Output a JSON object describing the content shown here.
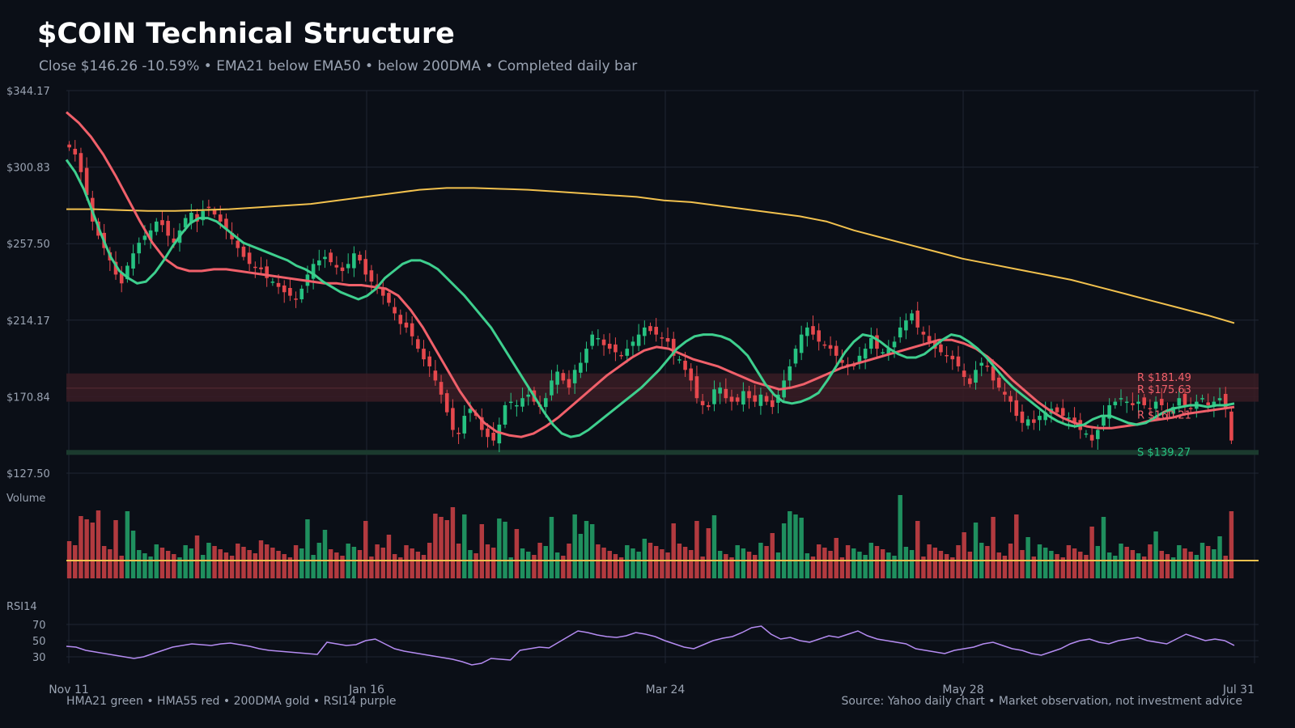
{
  "header": {
    "title": "$COIN Technical Structure",
    "subtitle": "Close $146.26  -10.59%  •  EMA21 below EMA50 • below 200DMA  •  Completed daily bar"
  },
  "footer": {
    "legend": "HMA21 green • HMA55 red • 200DMA gold  •  RSI14 purple",
    "source": "Source: Yahoo daily chart • Market observation, not investment advice"
  },
  "colors": {
    "background": "#0b0f17",
    "up": "#26c281",
    "down": "#e5484d",
    "hma21": "#3ecf8e",
    "hma55": "#f0606a",
    "dma200": "#f2c14e",
    "rsi": "#b58cf2",
    "resistance_band": "#3a1c24",
    "support_band": "#1b3a2e",
    "grid": "#1f2633"
  },
  "chart_data": {
    "type": "candlestick",
    "price_axis": {
      "ticks": [
        "$344.17",
        "$300.83",
        "$257.50",
        "$214.17",
        "$170.84",
        "$127.50"
      ],
      "tick_values": [
        344.17,
        300.83,
        257.5,
        214.17,
        170.84,
        127.5
      ],
      "ylim": [
        127.5,
        344.17
      ]
    },
    "date_ticks": [
      "Nov 11",
      "Jan 16",
      "Mar 24",
      "May 28",
      "Jul 31"
    ],
    "panel_labels": {
      "volume": "Volume",
      "rsi": "RSI14"
    },
    "rsi_axis": {
      "ticks": [
        "70",
        "50",
        "30"
      ],
      "tick_values": [
        70,
        50,
        30
      ]
    },
    "levels": [
      {
        "label": "R $181.49",
        "value": 181.49,
        "kind": "resistance"
      },
      {
        "label": "R $175.63",
        "value": 175.63,
        "kind": "resistance"
      },
      {
        "label": "R $160.21",
        "value": 160.21,
        "kind": "resistance"
      },
      {
        "label": "S $139.27",
        "value": 139.27,
        "kind": "support"
      }
    ],
    "close": [
      312,
      308,
      298,
      285,
      270,
      262,
      255,
      248,
      240,
      235,
      245,
      252,
      258,
      262,
      265,
      270,
      268,
      262,
      258,
      265,
      272,
      275,
      270,
      276,
      278,
      274,
      270,
      266,
      260,
      255,
      250,
      246,
      244,
      243,
      238,
      236,
      233,
      230,
      228,
      226,
      232,
      240,
      246,
      248,
      250,
      247,
      244,
      242,
      246,
      252,
      248,
      240,
      236,
      232,
      228,
      224,
      218,
      212,
      210,
      205,
      198,
      192,
      188,
      180,
      172,
      162,
      152,
      150,
      160,
      164,
      160,
      152,
      148,
      146,
      155,
      166,
      168,
      166,
      170,
      172,
      168,
      165,
      170,
      180,
      185,
      180,
      176,
      186,
      190,
      198,
      206,
      204,
      200,
      198,
      196,
      194,
      198,
      202,
      206,
      210,
      208,
      206,
      204,
      202,
      194,
      192,
      186,
      180,
      170,
      166,
      165,
      175,
      176,
      170,
      168,
      168,
      174,
      170,
      168,
      172,
      168,
      165,
      172,
      180,
      188,
      198,
      206,
      210,
      206,
      202,
      200,
      198,
      194,
      190,
      188,
      188,
      194,
      198,
      204,
      198,
      196,
      198,
      202,
      210,
      214,
      218,
      210,
      206,
      202,
      198,
      196,
      194,
      192,
      188,
      182,
      178,
      186,
      190,
      188,
      180,
      176,
      172,
      168,
      160,
      156,
      158,
      156,
      160,
      162,
      164,
      162,
      160,
      159,
      156,
      152,
      150,
      146,
      152,
      160,
      166,
      168,
      170,
      168,
      166,
      168,
      166,
      164,
      168,
      166,
      162,
      165,
      170,
      166,
      164,
      168,
      170,
      166,
      168,
      170,
      164,
      146
    ],
    "hma21": [
      305,
      298,
      288,
      275,
      262,
      250,
      242,
      238,
      235,
      236,
      241,
      248,
      256,
      263,
      269,
      272,
      272,
      270,
      266,
      262,
      258,
      256,
      254,
      252,
      250,
      248,
      245,
      243,
      240,
      236,
      233,
      230,
      228,
      226,
      228,
      232,
      238,
      242,
      246,
      248,
      248,
      246,
      243,
      238,
      233,
      228,
      222,
      216,
      210,
      202,
      194,
      186,
      178,
      170,
      162,
      155,
      150,
      148,
      149,
      152,
      156,
      160,
      164,
      168,
      172,
      176,
      181,
      186,
      192,
      198,
      202,
      205,
      206,
      206,
      205,
      203,
      199,
      194,
      186,
      178,
      172,
      168,
      167,
      168,
      170,
      173,
      180,
      188,
      196,
      202,
      206,
      205,
      202,
      198,
      195,
      193,
      193,
      195,
      199,
      203,
      206,
      205,
      202,
      198,
      193,
      187,
      181,
      176,
      172,
      168,
      164,
      160,
      157,
      155,
      154,
      155,
      158,
      160,
      160,
      158,
      156,
      155,
      156,
      159,
      162,
      164,
      165,
      166,
      166,
      165,
      166,
      166,
      167
    ],
    "hma55": [
      332,
      326,
      318,
      308,
      296,
      283,
      270,
      258,
      249,
      244,
      242,
      242,
      243,
      243,
      242,
      241,
      240,
      239,
      238,
      237,
      236,
      235,
      235,
      234,
      234,
      233,
      232,
      228,
      220,
      210,
      198,
      186,
      174,
      164,
      156,
      151,
      149,
      148,
      150,
      154,
      159,
      165,
      171,
      177,
      183,
      188,
      193,
      197,
      199,
      198,
      195,
      192,
      190,
      188,
      185,
      182,
      179,
      177,
      175,
      176,
      178,
      181,
      184,
      187,
      189,
      191,
      193,
      195,
      197,
      199,
      201,
      203,
      203,
      201,
      198,
      193,
      187,
      180,
      174,
      168,
      163,
      159,
      156,
      154,
      153,
      153,
      154,
      155,
      157,
      158,
      159,
      161,
      162,
      163,
      164,
      165
    ],
    "dma200": [
      277,
      277,
      276.5,
      276,
      276,
      276.5,
      277,
      278,
      279,
      280,
      282,
      284,
      286,
      288,
      289,
      289,
      288.5,
      288,
      287,
      286,
      285,
      284,
      282,
      281,
      279,
      277,
      275,
      273,
      270,
      265,
      261,
      257,
      253,
      249,
      246,
      243,
      240,
      237,
      233,
      229,
      225,
      221,
      217,
      212.5
    ],
    "volume_avg_note": "",
    "rsi14": [
      43,
      42,
      38,
      36,
      34,
      32,
      30,
      28,
      30,
      34,
      38,
      42,
      44,
      46,
      45,
      44,
      46,
      47,
      45,
      43,
      40,
      38,
      37,
      36,
      35,
      34,
      33,
      48,
      46,
      44,
      45,
      50,
      52,
      46,
      40,
      37,
      35,
      33,
      31,
      29,
      27,
      24,
      20,
      22,
      28,
      27,
      26,
      38,
      40,
      42,
      41,
      48,
      55,
      62,
      60,
      57,
      55,
      54,
      56,
      60,
      58,
      55,
      50,
      46,
      42,
      40,
      45,
      50,
      53,
      55,
      60,
      66,
      68,
      58,
      52,
      54,
      50,
      48,
      52,
      56,
      54,
      58,
      62,
      56,
      52,
      50,
      48,
      46,
      40,
      38,
      36,
      34,
      38,
      40,
      42,
      46,
      48,
      44,
      40,
      38,
      34,
      32,
      36,
      40,
      46,
      50,
      52,
      48,
      46,
      50,
      52,
      54,
      50,
      48,
      46,
      52,
      58,
      54,
      50,
      52,
      50,
      44
    ]
  }
}
